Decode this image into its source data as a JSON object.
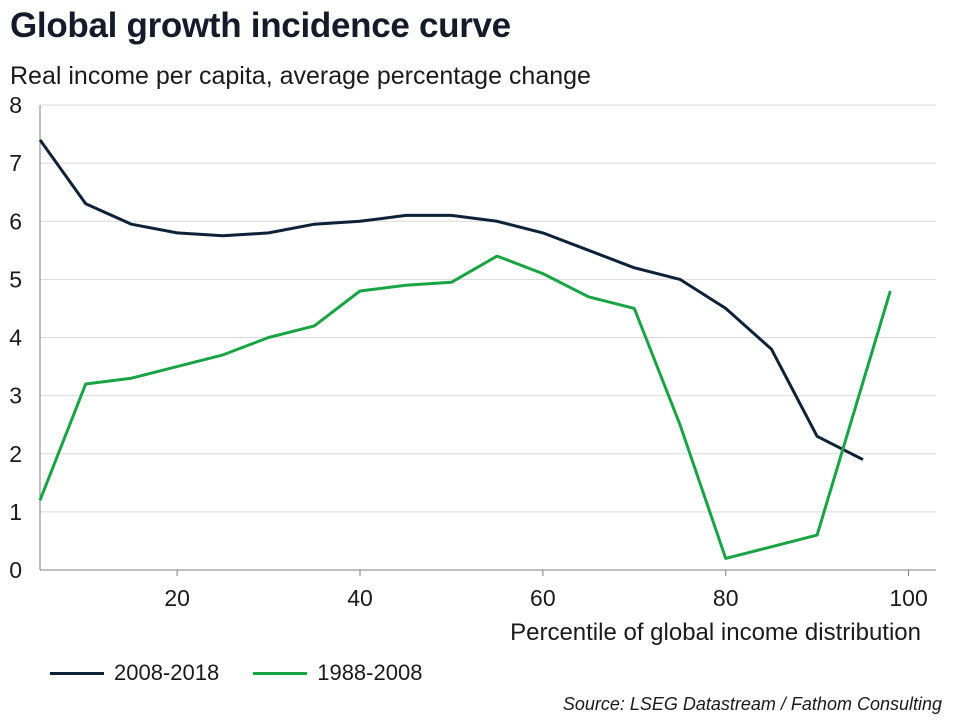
{
  "chart_data": {
    "type": "line",
    "title": "Global growth incidence curve",
    "subtitle": "Real income per capita, average percentage change",
    "xlabel": "Percentile of global income distribution",
    "ylabel": "",
    "xlim": [
      5,
      103
    ],
    "ylim": [
      0,
      8
    ],
    "xticks": [
      20,
      40,
      60,
      80,
      100
    ],
    "yticks": [
      0,
      1,
      2,
      3,
      4,
      5,
      6,
      7,
      8
    ],
    "grid": "horizontal",
    "legend": "bottom-left",
    "series": [
      {
        "name": "2008-2018",
        "color": "#0d2238",
        "x": [
          5,
          10,
          15,
          20,
          25,
          30,
          35,
          40,
          45,
          50,
          55,
          60,
          65,
          70,
          75,
          80,
          85,
          90,
          95
        ],
        "values": [
          7.4,
          6.3,
          5.95,
          5.8,
          5.75,
          5.8,
          5.95,
          6.0,
          6.1,
          6.1,
          6.0,
          5.8,
          5.5,
          5.2,
          5.0,
          4.5,
          3.8,
          2.3,
          1.9
        ]
      },
      {
        "name": "1988-2008",
        "color": "#1aa344",
        "x": [
          5,
          10,
          15,
          20,
          25,
          30,
          35,
          40,
          45,
          50,
          55,
          60,
          65,
          70,
          75,
          80,
          85,
          90,
          98
        ],
        "values": [
          1.2,
          3.2,
          3.3,
          3.5,
          3.7,
          4.0,
          4.2,
          4.8,
          4.9,
          4.95,
          5.4,
          5.1,
          4.7,
          4.5,
          2.5,
          0.2,
          0.4,
          0.6,
          4.8
        ]
      }
    ]
  },
  "source": "Source: LSEG Datastream / Fathom Consulting"
}
